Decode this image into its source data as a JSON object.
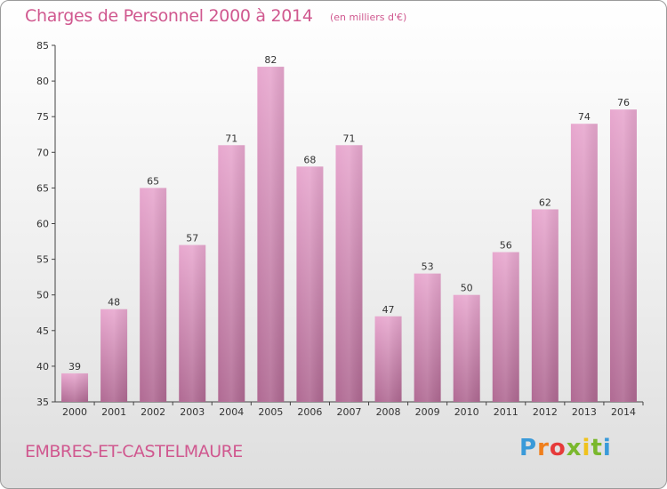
{
  "header": {
    "title": "Charges de Personnel 2000 à 2014",
    "subtitle": "(en milliers d'€)"
  },
  "footer": {
    "commune": "EMBRES-ET-CASTELMAURE",
    "logo": [
      "P",
      "r",
      "o",
      "x",
      "i",
      "t",
      "i"
    ]
  },
  "colors": {
    "bar_top": "#e8a8cf",
    "bar_bottom": "#b06a93",
    "title": "#d0588f"
  },
  "chart_data": {
    "type": "bar",
    "title": "Charges de Personnel 2000 à 2014",
    "subtitle": "(en milliers d'€)",
    "categories": [
      "2000",
      "2001",
      "2002",
      "2003",
      "2004",
      "2005",
      "2006",
      "2007",
      "2008",
      "2009",
      "2010",
      "2011",
      "2012",
      "2013",
      "2014"
    ],
    "values": [
      39,
      48,
      65,
      57,
      71,
      82,
      68,
      71,
      47,
      53,
      50,
      56,
      62,
      74,
      76
    ],
    "ylim": [
      35,
      85
    ],
    "yticks": [
      35,
      40,
      45,
      50,
      55,
      60,
      65,
      70,
      75,
      80,
      85
    ],
    "grid": false,
    "legend": "none"
  }
}
